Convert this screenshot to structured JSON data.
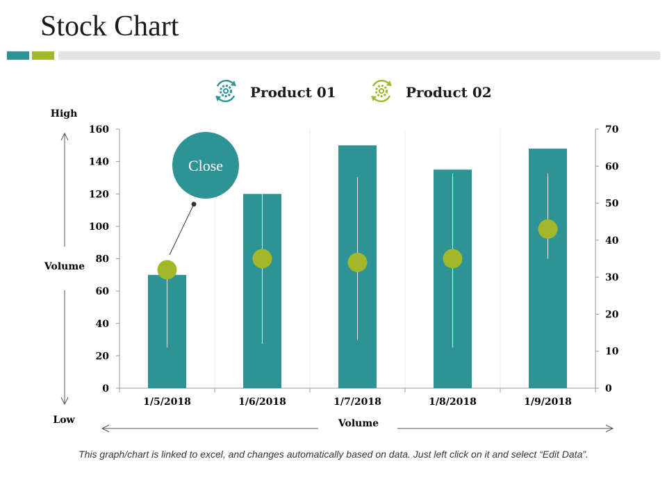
{
  "title": "Stock Chart",
  "footnote": "This graph/chart is linked to excel, and changes automatically based on data. Just left click on it and select “Edit Data”.",
  "colors": {
    "teal": "#2d9395",
    "green": "#a2b82a",
    "strip_gray": "#e3e3e3",
    "axis": "#999999"
  },
  "legend": [
    {
      "label": "Product 01",
      "icon": "gear-cycle-icon",
      "color": "#2d9395"
    },
    {
      "label": "Product 02",
      "icon": "gear-cycle-icon",
      "color": "#a2b82a"
    }
  ],
  "side_labels": {
    "high": "High",
    "low": "Low",
    "volume_left": "Volume",
    "volume_bottom": "Volume"
  },
  "callout": {
    "label": "Close"
  },
  "chart_data": {
    "type": "bar",
    "title": "Stock Chart",
    "categories": [
      "1/5/2018",
      "1/6/2018",
      "1/7/2018",
      "1/8/2018",
      "1/9/2018"
    ],
    "series": [
      {
        "name": "Volume",
        "axis": "left",
        "values": [
          70,
          120,
          150,
          135,
          148
        ]
      },
      {
        "name": "High",
        "axis": "right",
        "values": [
          55,
          57,
          57,
          58,
          58
        ]
      },
      {
        "name": "Low",
        "axis": "right",
        "values": [
          11,
          12,
          13,
          11,
          35
        ]
      },
      {
        "name": "Close",
        "axis": "right",
        "values": [
          32,
          35,
          34,
          35,
          43
        ]
      }
    ],
    "ylim_left": [
      0,
      160
    ],
    "yticks_left": [
      "0",
      "20",
      "40",
      "60",
      "80",
      "100",
      "120",
      "140",
      "160"
    ],
    "ylim_right": [
      0,
      70
    ],
    "yticks_right": [
      "0",
      "10",
      "20",
      "30",
      "40",
      "50",
      "60",
      "70"
    ],
    "xlabel": "Volume",
    "ylabel": "Volume"
  }
}
